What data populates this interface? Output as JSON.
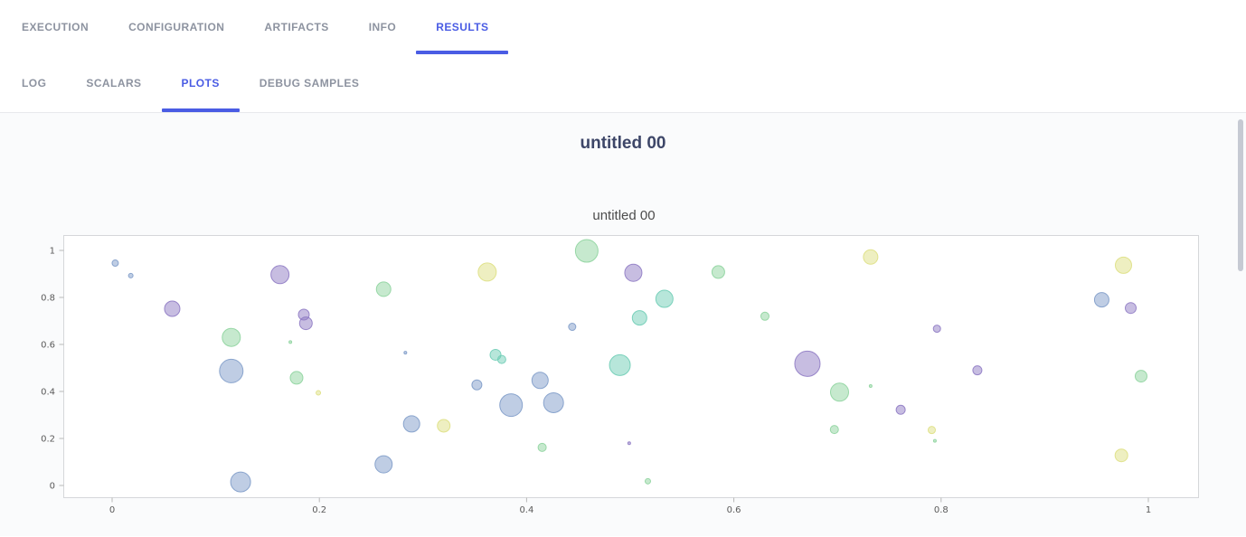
{
  "tabs_primary": [
    {
      "label": "EXECUTION",
      "active": false
    },
    {
      "label": "CONFIGURATION",
      "active": false
    },
    {
      "label": "ARTIFACTS",
      "active": false
    },
    {
      "label": "INFO",
      "active": false
    },
    {
      "label": "RESULTS",
      "active": true
    }
  ],
  "tabs_secondary": [
    {
      "label": "LOG",
      "active": false
    },
    {
      "label": "SCALARS",
      "active": false
    },
    {
      "label": "PLOTS",
      "active": true
    },
    {
      "label": "DEBUG SAMPLES",
      "active": false
    }
  ],
  "section_title": "untitled 00",
  "colors": {
    "accent": "#4a5ce4",
    "inactive_tab": "#8d93a0",
    "heading": "#3d4668",
    "axis_box": "#d5d7da"
  },
  "chart_data": {
    "type": "scatter",
    "title": "untitled 00",
    "xlabel": "",
    "ylabel": "",
    "xlim": [
      -0.05,
      1.08
    ],
    "ylim": [
      -0.07,
      1.07
    ],
    "x_ticks": [
      0,
      0.2,
      0.4,
      0.6,
      0.8,
      1
    ],
    "y_ticks": [
      0,
      0.2,
      0.4,
      0.6,
      0.8,
      1
    ],
    "grid": false,
    "legend": false,
    "palette": {
      "blue": "#7f9cc9",
      "green": "#8ed49e",
      "purple": "#8f7bc4",
      "yellow": "#dee083",
      "teal": "#6fcdb6"
    },
    "points": [
      {
        "x": 0.003,
        "y": 0.946,
        "r": 3.5,
        "c": "blue"
      },
      {
        "x": 0.018,
        "y": 0.893,
        "r": 2.5,
        "c": "blue"
      },
      {
        "x": 0.058,
        "y": 0.752,
        "r": 8.5,
        "c": "purple"
      },
      {
        "x": 0.115,
        "y": 0.63,
        "r": 10,
        "c": "green"
      },
      {
        "x": 0.115,
        "y": 0.487,
        "r": 13,
        "c": "blue"
      },
      {
        "x": 0.124,
        "y": 0.015,
        "r": 11,
        "c": "blue"
      },
      {
        "x": 0.162,
        "y": 0.897,
        "r": 10,
        "c": "purple"
      },
      {
        "x": 0.185,
        "y": 0.727,
        "r": 6,
        "c": "purple"
      },
      {
        "x": 0.187,
        "y": 0.69,
        "r": 7,
        "c": "purple"
      },
      {
        "x": 0.172,
        "y": 0.61,
        "r": 1.5,
        "c": "green"
      },
      {
        "x": 0.178,
        "y": 0.458,
        "r": 7,
        "c": "green"
      },
      {
        "x": 0.199,
        "y": 0.394,
        "r": 2.5,
        "c": "yellow"
      },
      {
        "x": 0.262,
        "y": 0.835,
        "r": 8,
        "c": "green"
      },
      {
        "x": 0.262,
        "y": 0.09,
        "r": 9.5,
        "c": "blue"
      },
      {
        "x": 0.283,
        "y": 0.565,
        "r": 1.5,
        "c": "blue"
      },
      {
        "x": 0.289,
        "y": 0.262,
        "r": 9,
        "c": "blue"
      },
      {
        "x": 0.32,
        "y": 0.254,
        "r": 7,
        "c": "yellow"
      },
      {
        "x": 0.352,
        "y": 0.428,
        "r": 5.5,
        "c": "blue"
      },
      {
        "x": 0.362,
        "y": 0.908,
        "r": 10,
        "c": "yellow"
      },
      {
        "x": 0.37,
        "y": 0.556,
        "r": 6,
        "c": "teal"
      },
      {
        "x": 0.376,
        "y": 0.536,
        "r": 4.5,
        "c": "teal"
      },
      {
        "x": 0.385,
        "y": 0.342,
        "r": 12.5,
        "c": "blue"
      },
      {
        "x": 0.413,
        "y": 0.447,
        "r": 9,
        "c": "blue"
      },
      {
        "x": 0.415,
        "y": 0.162,
        "r": 4.5,
        "c": "green"
      },
      {
        "x": 0.426,
        "y": 0.352,
        "r": 11,
        "c": "blue"
      },
      {
        "x": 0.444,
        "y": 0.675,
        "r": 4,
        "c": "blue"
      },
      {
        "x": 0.458,
        "y": 0.998,
        "r": 12.5,
        "c": "green"
      },
      {
        "x": 0.49,
        "y": 0.512,
        "r": 11.5,
        "c": "teal"
      },
      {
        "x": 0.503,
        "y": 0.905,
        "r": 9.5,
        "c": "purple"
      },
      {
        "x": 0.499,
        "y": 0.18,
        "r": 1.5,
        "c": "purple"
      },
      {
        "x": 0.509,
        "y": 0.713,
        "r": 8,
        "c": "teal"
      },
      {
        "x": 0.517,
        "y": 0.018,
        "r": 3,
        "c": "green"
      },
      {
        "x": 0.533,
        "y": 0.794,
        "r": 9.5,
        "c": "teal"
      },
      {
        "x": 0.585,
        "y": 0.908,
        "r": 7,
        "c": "green"
      },
      {
        "x": 0.63,
        "y": 0.72,
        "r": 4.5,
        "c": "green"
      },
      {
        "x": 0.671,
        "y": 0.518,
        "r": 14,
        "c": "purple"
      },
      {
        "x": 0.702,
        "y": 0.397,
        "r": 10,
        "c": "green"
      },
      {
        "x": 0.697,
        "y": 0.238,
        "r": 4.5,
        "c": "green"
      },
      {
        "x": 0.732,
        "y": 0.423,
        "r": 1.5,
        "c": "green"
      },
      {
        "x": 0.732,
        "y": 0.972,
        "r": 8,
        "c": "yellow"
      },
      {
        "x": 0.761,
        "y": 0.322,
        "r": 5,
        "c": "purple"
      },
      {
        "x": 0.796,
        "y": 0.667,
        "r": 4,
        "c": "purple"
      },
      {
        "x": 0.791,
        "y": 0.236,
        "r": 4,
        "c": "yellow"
      },
      {
        "x": 0.794,
        "y": 0.19,
        "r": 1.5,
        "c": "green"
      },
      {
        "x": 0.835,
        "y": 0.49,
        "r": 5,
        "c": "purple"
      },
      {
        "x": 0.955,
        "y": 0.79,
        "r": 8,
        "c": "blue"
      },
      {
        "x": 0.976,
        "y": 0.937,
        "r": 9,
        "c": "yellow"
      },
      {
        "x": 0.983,
        "y": 0.755,
        "r": 6,
        "c": "purple"
      },
      {
        "x": 0.993,
        "y": 0.465,
        "r": 6.5,
        "c": "green"
      },
      {
        "x": 0.974,
        "y": 0.128,
        "r": 7,
        "c": "yellow"
      }
    ]
  }
}
